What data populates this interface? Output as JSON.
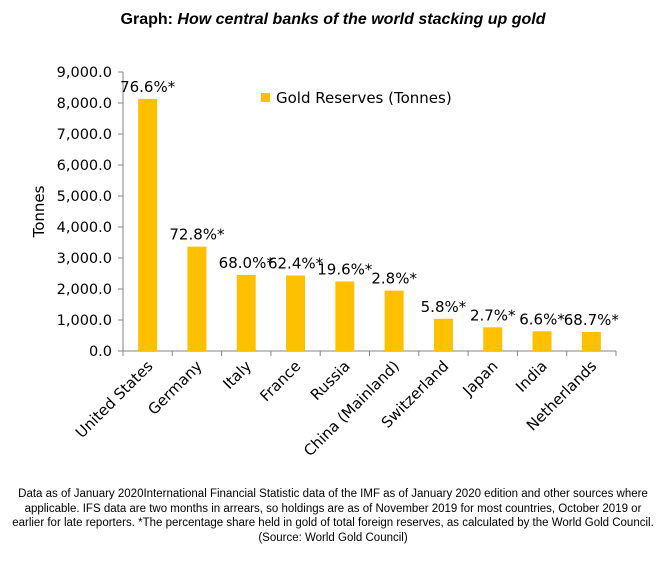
{
  "title": {
    "prefix": "Graph: ",
    "italic": "How central banks of the world stacking up gold"
  },
  "chart_data": {
    "type": "bar",
    "ylabel": "Tonnes",
    "xlabel": "",
    "ylim": [
      0,
      9000
    ],
    "yticks": [
      0,
      1000,
      2000,
      3000,
      4000,
      5000,
      6000,
      7000,
      8000,
      9000
    ],
    "ytick_labels": [
      "0.0",
      "1,000.0",
      "2,000.0",
      "3,000.0",
      "4,000.0",
      "5,000.0",
      "6,000.0",
      "7,000.0",
      "8,000.0",
      "9,000.0"
    ],
    "grid": false,
    "legend_position": "top-center",
    "categories": [
      "United States",
      "Germany",
      "Italy",
      "France",
      "Russia",
      "China (Mainland)",
      "Switzerland",
      "Japan",
      "India",
      "Netherlands"
    ],
    "series": [
      {
        "name": "Gold Reserves (Tonnes)",
        "color": "#FFC000",
        "values": [
          8133.5,
          3366.5,
          2451.8,
          2436.1,
          2241.9,
          1948.3,
          1040.0,
          765.2,
          636.0,
          612.5
        ],
        "data_labels": [
          "76.6%*",
          "72.8%*",
          "68.0%*",
          "62.4%*",
          "19.6%*",
          "2.8%*",
          "5.8%*",
          "2.7%*",
          "6.6%*",
          "68.7%*"
        ]
      }
    ]
  },
  "footnote": {
    "text": "Data as of January 2020International Financial Statistic data of the IMF as of January 2020 edition and other sources where applicable. IFS data are two months in arrears, so holdings are as of November 2019 for most countries, October 2019 or earlier for late reporters. *The percentage share held in gold of total foreign reserves, as calculated by the World Gold Council.",
    "source": "(Source: World Gold Council)"
  }
}
